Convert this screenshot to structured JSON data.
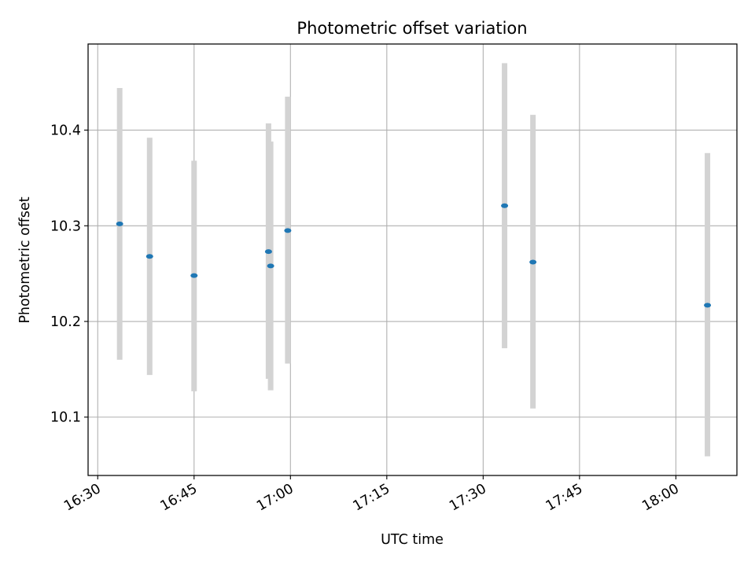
{
  "chart_data": {
    "type": "scatter",
    "title": "Photometric offset variation",
    "xlabel": "UTC time",
    "ylabel": "Photometric offset",
    "x_axis_type": "time",
    "xlim": [
      "16:28:30",
      "18:09:30"
    ],
    "ylim": [
      10.039,
      10.49
    ],
    "x_ticks": [
      "16:30",
      "16:45",
      "17:00",
      "17:15",
      "17:30",
      "17:45",
      "18:00"
    ],
    "y_ticks": [
      10.1,
      10.2,
      10.3,
      10.4
    ],
    "y_tick_labels": [
      "10.1",
      "10.2",
      "10.3",
      "10.4"
    ],
    "grid": true,
    "series": [
      {
        "points": [
          {
            "x": "16:33:25",
            "y": 10.302,
            "err_low": 10.16,
            "err_high": 10.444
          },
          {
            "x": "16:38:05",
            "y": 10.268,
            "err_low": 10.144,
            "err_high": 10.392
          },
          {
            "x": "16:45:00",
            "y": 10.248,
            "err_low": 10.127,
            "err_high": 10.368
          },
          {
            "x": "16:56:35",
            "y": 10.273,
            "err_low": 10.14,
            "err_high": 10.407
          },
          {
            "x": "16:56:55",
            "y": 10.258,
            "err_low": 10.128,
            "err_high": 10.388
          },
          {
            "x": "16:59:35",
            "y": 10.295,
            "err_low": 10.156,
            "err_high": 10.435
          },
          {
            "x": "17:33:20",
            "y": 10.321,
            "err_low": 10.172,
            "err_high": 10.47
          },
          {
            "x": "17:37:45",
            "y": 10.262,
            "err_low": 10.109,
            "err_high": 10.416
          },
          {
            "x": "18:04:55",
            "y": 10.217,
            "err_low": 10.059,
            "err_high": 10.376
          }
        ]
      }
    ]
  },
  "colors": {
    "point": "#1f77b4",
    "errorbar": "#d3d3d3",
    "grid": "#b0b0b0",
    "axes": "#000000"
  }
}
